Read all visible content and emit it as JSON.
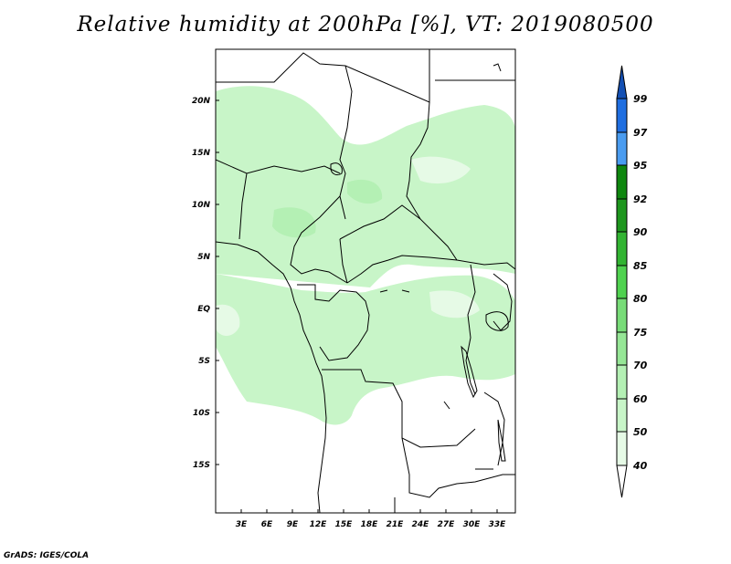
{
  "title": "Relative humidity at 200hPa [%], VT: 2019080500",
  "footer": "GrADS: IGES/COLA",
  "map": {
    "lat_labels": [
      "20N",
      "15N",
      "10N",
      "5N",
      "EQ",
      "5S",
      "10S",
      "15S"
    ],
    "lon_labels": [
      "3E",
      "6E",
      "9E",
      "12E",
      "15E",
      "18E",
      "21E",
      "24E",
      "27E",
      "30E",
      "33E"
    ],
    "fill_color": "#b4f0b4",
    "fill_color_light": "#d2f8d2"
  },
  "colorbar": {
    "levels": [
      "40",
      "50",
      "60",
      "70",
      "75",
      "80",
      "85",
      "90",
      "92",
      "95",
      "97",
      "99"
    ],
    "colors": [
      "#ffffff",
      "#e6fae6",
      "#c8f5c8",
      "#b4f0b4",
      "#96e696",
      "#78dc78",
      "#50d250",
      "#32b432",
      "#1e961e",
      "#0f870f",
      "#4a9cf0",
      "#1f6ee0",
      "#1450b4"
    ]
  }
}
